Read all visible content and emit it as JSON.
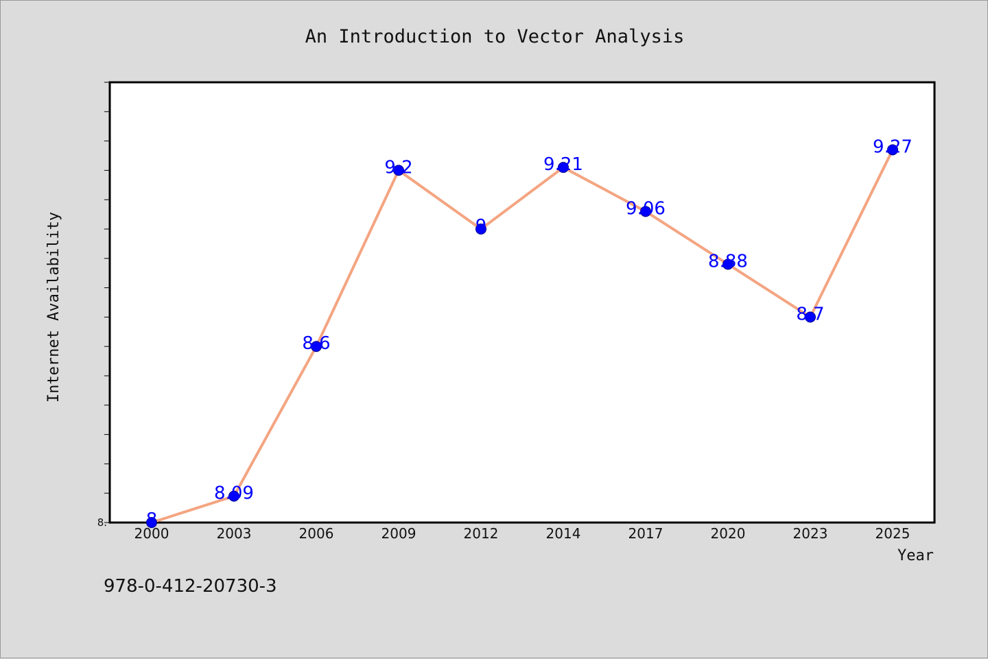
{
  "colors": {
    "background": "#dcdcdc",
    "plot_background": "#ffffff",
    "line": "#f4a582",
    "marker": "#0000ff",
    "data_label": "#0000ff"
  },
  "footer": {
    "isbn": "978-0-412-20730-3"
  },
  "chart_data": {
    "type": "line",
    "title": "An Introduction to Vector Analysis",
    "xlabel": "Year",
    "ylabel": "Internet Availability",
    "categories": [
      "2000",
      "2003",
      "2006",
      "2009",
      "2012",
      "2014",
      "2017",
      "2020",
      "2023",
      "2025"
    ],
    "series": [
      {
        "values": [
          8,
          8.09,
          8.6,
          9.2,
          9,
          9.21,
          9.06,
          8.88,
          8.7,
          9.27
        ],
        "data_labels": [
          "8",
          "8.09",
          "8.6",
          "9.2",
          "9",
          "9.21",
          "9.06",
          "8.88",
          "8.7",
          "9.27"
        ],
        "marker": "circle"
      }
    ],
    "ylim": [
      8,
      9.5
    ],
    "y_tick_labels": [
      "8."
    ],
    "grid": false,
    "legend": "none"
  }
}
